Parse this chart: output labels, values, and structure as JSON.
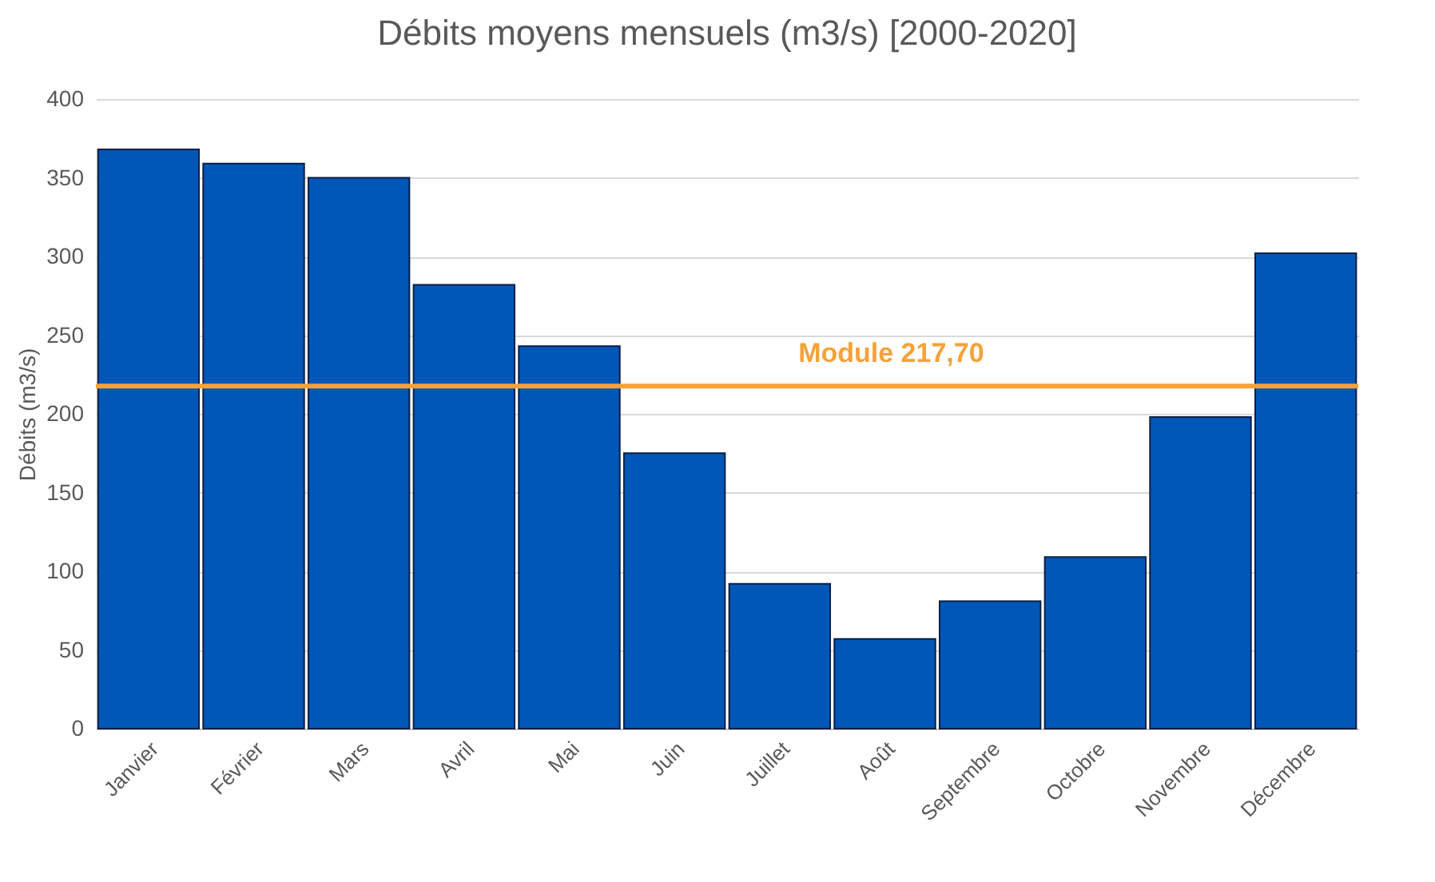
{
  "chart_data": {
    "type": "bar",
    "title": "Débits moyens mensuels (m3/s) [2000-2020]",
    "ylabel": "Débits (m3/s)",
    "categories": [
      "Janvier",
      "Février",
      "Mars",
      "Avril",
      "Mai",
      "Juin",
      "Juillet",
      "Août",
      "Septembre",
      "Octobre",
      "Novembre",
      "Décembre"
    ],
    "values": [
      368,
      359,
      350,
      282,
      243,
      175,
      92,
      57,
      81,
      109,
      198,
      302
    ],
    "color": "#0057b8",
    "ylim": [
      0,
      400
    ],
    "yticks": [
      0,
      50,
      100,
      150,
      200,
      250,
      300,
      350,
      400
    ],
    "grid": "y",
    "ref_lines": [
      {
        "axis": "y",
        "value": 217.7,
        "label": "Module 217,70",
        "color": "#f5a23a"
      }
    ]
  }
}
